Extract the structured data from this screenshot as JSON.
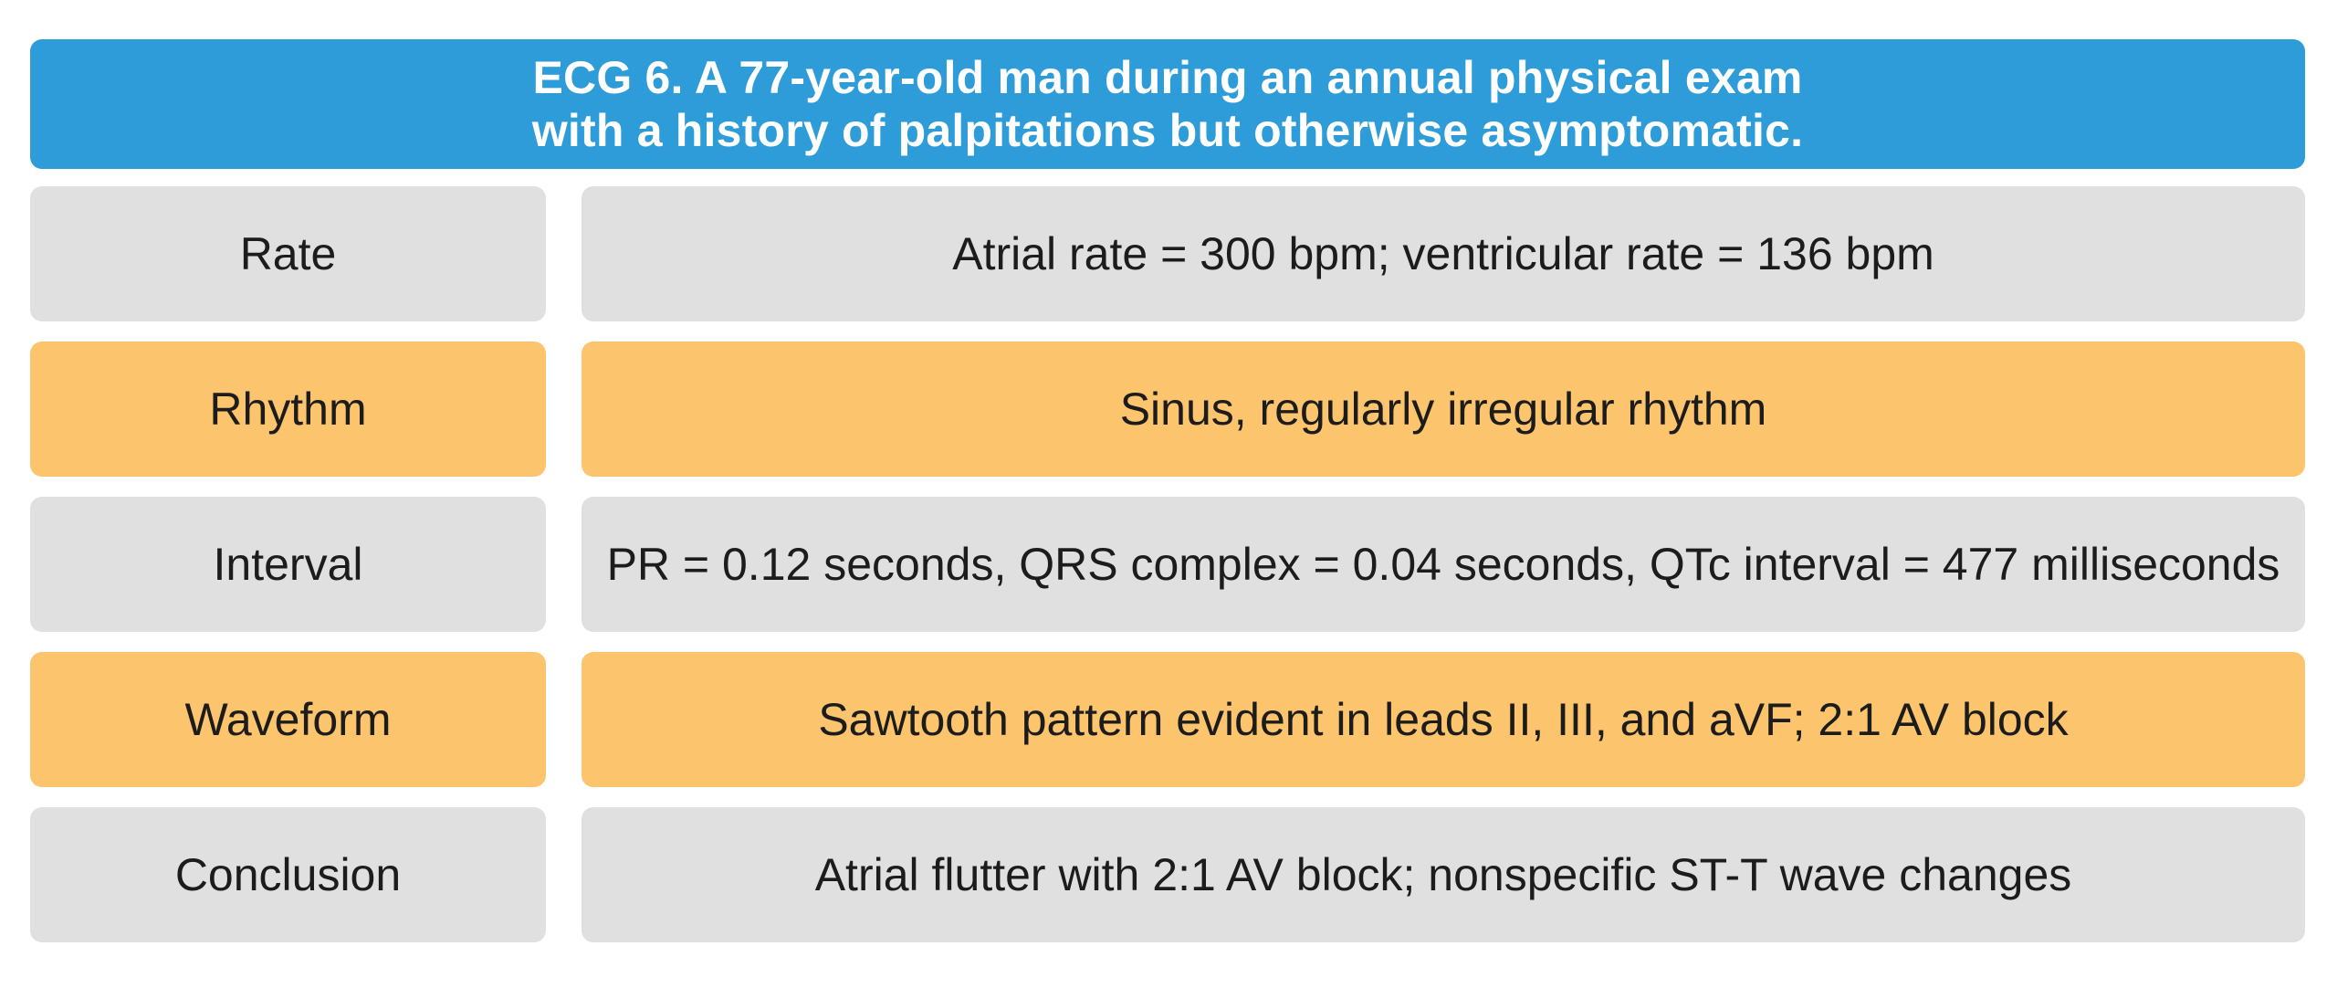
{
  "header": {
    "title_lines": [
      "ECG 6. A 77-year-old man during an annual physical exam",
      "with a history of palpitations but otherwise asymptomatic."
    ]
  },
  "table": {
    "rows": [
      {
        "label": "Rate",
        "value": "Atrial rate = 300 bpm; ventricular rate = 136 bpm",
        "tone": "gray"
      },
      {
        "label": "Rhythm",
        "value": "Sinus, regularly irregular rhythm",
        "tone": "amber"
      },
      {
        "label": "Interval",
        "value": "PR = 0.12 seconds, QRS complex = 0.04 seconds, QTc interval = 477 milliseconds",
        "tone": "gray"
      },
      {
        "label": "Waveform",
        "value": "Sawtooth pattern evident in leads II, III, and aVF; 2:1 AV block",
        "tone": "amber"
      },
      {
        "label": "Conclusion",
        "value": "Atrial flutter with 2:1 AV block; nonspecific ST-T wave changes",
        "tone": "gray"
      }
    ]
  },
  "theme": {
    "header_blue": "#2E9CD9",
    "row_amber": "#FBC46D",
    "row_gray": "#E0E0E0",
    "header_text": "#FFFFFF",
    "body_text": "#1C1C1C"
  }
}
